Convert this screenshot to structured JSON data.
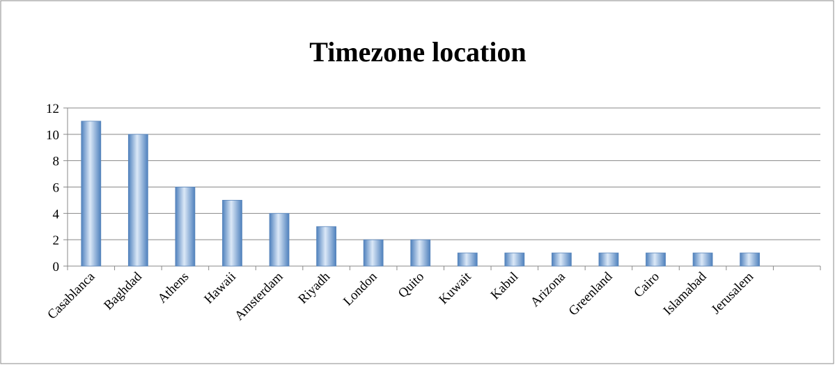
{
  "chart_data": {
    "type": "bar",
    "title": "Timezone location",
    "categories": [
      "Casablanca",
      "Baghdad",
      "Athens",
      "Hawaii",
      "Amsterdam",
      "Riyadh",
      "London",
      "Quito",
      "Kuwait",
      "Kabul",
      "Arizona",
      "Greenland",
      "Cairo",
      "Islamabad",
      "Jerusalem",
      null
    ],
    "values": [
      11,
      10,
      6,
      5,
      4,
      3,
      2,
      2,
      1,
      1,
      1,
      1,
      1,
      1,
      1,
      null
    ],
    "color": "#4f81bd",
    "ylim": [
      0,
      12
    ],
    "yticks": [
      0,
      2,
      4,
      6,
      8,
      10,
      12
    ],
    "grid": true
  }
}
